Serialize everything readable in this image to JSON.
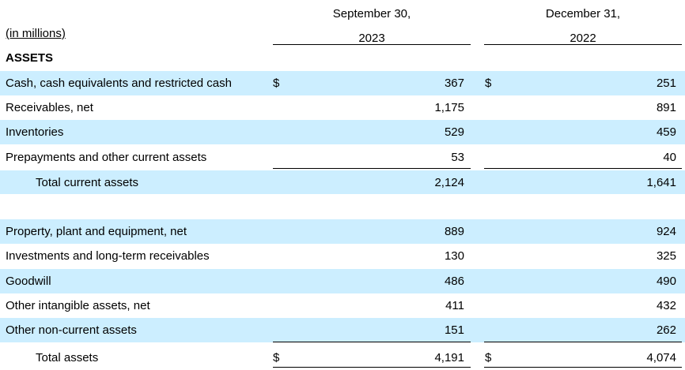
{
  "header": {
    "units": "(in millions)",
    "col1_line1": "September 30,",
    "col1_line2": "2023",
    "col2_line1": "December 31,",
    "col2_line2": "2022"
  },
  "section_title": "ASSETS",
  "currency_symbol": "$",
  "rows": [
    {
      "label": "Cash, cash equivalents and restricted cash",
      "v2023": "367",
      "v2022": "251"
    },
    {
      "label": "Receivables, net",
      "v2023": "1,175",
      "v2022": "891"
    },
    {
      "label": "Inventories",
      "v2023": "529",
      "v2022": "459"
    },
    {
      "label": "Prepayments and other current assets",
      "v2023": "53",
      "v2022": "40"
    },
    {
      "label": "Total current assets",
      "v2023": "2,124",
      "v2022": "1,641"
    },
    {
      "label": "Property, plant and equipment, net",
      "v2023": "889",
      "v2022": "924"
    },
    {
      "label": "Investments and long-term receivables",
      "v2023": "130",
      "v2022": "325"
    },
    {
      "label": "Goodwill",
      "v2023": "486",
      "v2022": "490"
    },
    {
      "label": "Other intangible assets, net",
      "v2023": "411",
      "v2022": "432"
    },
    {
      "label": "Other non-current assets",
      "v2023": "151",
      "v2022": "262"
    },
    {
      "label": "Total assets",
      "v2023": "4,191",
      "v2022": "4,074"
    }
  ]
}
